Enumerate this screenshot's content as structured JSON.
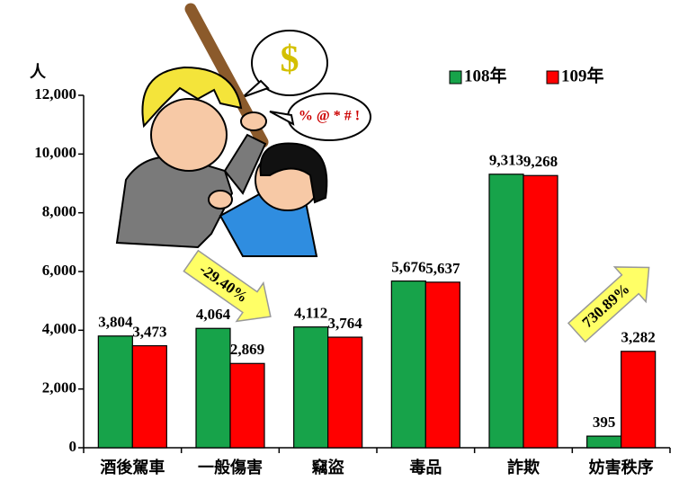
{
  "chart_data": {
    "type": "bar",
    "y_axis_label": "人",
    "categories": [
      "酒後駕車",
      "一般傷害",
      "竊盜",
      "毒品",
      "詐欺",
      "妨害秩序"
    ],
    "series": [
      {
        "name": "108年",
        "color": "#17a34a",
        "values": [
          3804,
          4064,
          4112,
          5676,
          9313,
          395
        ],
        "value_labels": [
          "3,804",
          "4,064",
          "4,112",
          "5,676",
          "9,313",
          "395"
        ]
      },
      {
        "name": "109年",
        "color": "#ff0000",
        "values": [
          3473,
          2869,
          3764,
          5637,
          9268,
          3282
        ],
        "value_labels": [
          "3,473",
          "2,869",
          "3,764",
          "5,637",
          "9,268",
          "3,282"
        ]
      }
    ],
    "ylim": [
      0,
      12000
    ],
    "yticks": [
      0,
      {
        "value": 2000,
        "label": "2,000"
      },
      {
        "value": 4000,
        "label": "4,000"
      },
      {
        "value": 6000,
        "label": "6,000"
      },
      {
        "value": 8000,
        "label": "8,000"
      },
      {
        "value": 10000,
        "label": "10,000"
      },
      {
        "value": 12000,
        "label": "12,000"
      }
    ],
    "grid": false,
    "legend": "top-right",
    "annotations": [
      "-29.40%",
      "730.89%"
    ],
    "illustration_texts": [
      "$",
      "% @ * # !"
    ]
  }
}
